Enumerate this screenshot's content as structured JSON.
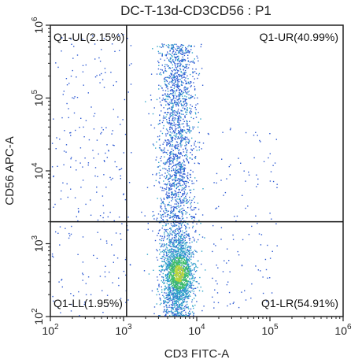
{
  "chart_data": {
    "type": "scatter",
    "title": "DC-T-13d-CD3CD56 : P1",
    "xlabel": "CD3 FITC-A",
    "ylabel": "CD56 APC-A",
    "x_scale": "log",
    "y_scale": "log",
    "xlim": [
      100,
      1000000
    ],
    "ylim": [
      100,
      1000000
    ],
    "x_ticks": [
      {
        "base": "10",
        "exp": "2"
      },
      {
        "base": "10",
        "exp": "3"
      },
      {
        "base": "10",
        "exp": "4"
      },
      {
        "base": "10",
        "exp": "5"
      },
      {
        "base": "10",
        "exp": "6"
      }
    ],
    "y_ticks": [
      {
        "base": "10",
        "exp": "2"
      },
      {
        "base": "10",
        "exp": "3"
      },
      {
        "base": "10",
        "exp": "4"
      },
      {
        "base": "10",
        "exp": "5"
      },
      {
        "base": "10",
        "exp": "6"
      }
    ],
    "gates": {
      "x": 1100,
      "y": 2000
    },
    "quadrants": [
      {
        "name": "Q1-UL",
        "percent": "2.15%",
        "label": "Q1-UL(2.15%)",
        "position": "top-left"
      },
      {
        "name": "Q1-UR",
        "percent": "40.99%",
        "label": "Q1-UR(40.99%)",
        "position": "top-right"
      },
      {
        "name": "Q1-LL",
        "percent": "1.95%",
        "label": "Q1-LL(1.95%)",
        "position": "bottom-left"
      },
      {
        "name": "Q1-LR",
        "percent": "54.91%",
        "label": "Q1-LR(54.91%)",
        "position": "bottom-right"
      }
    ],
    "colors": {
      "sparse": "#2f5bd3",
      "medium": "#2fa3c9",
      "dense": "#3fbf6a",
      "densest": "#b6d43a",
      "gate_line": "#111111"
    }
  }
}
